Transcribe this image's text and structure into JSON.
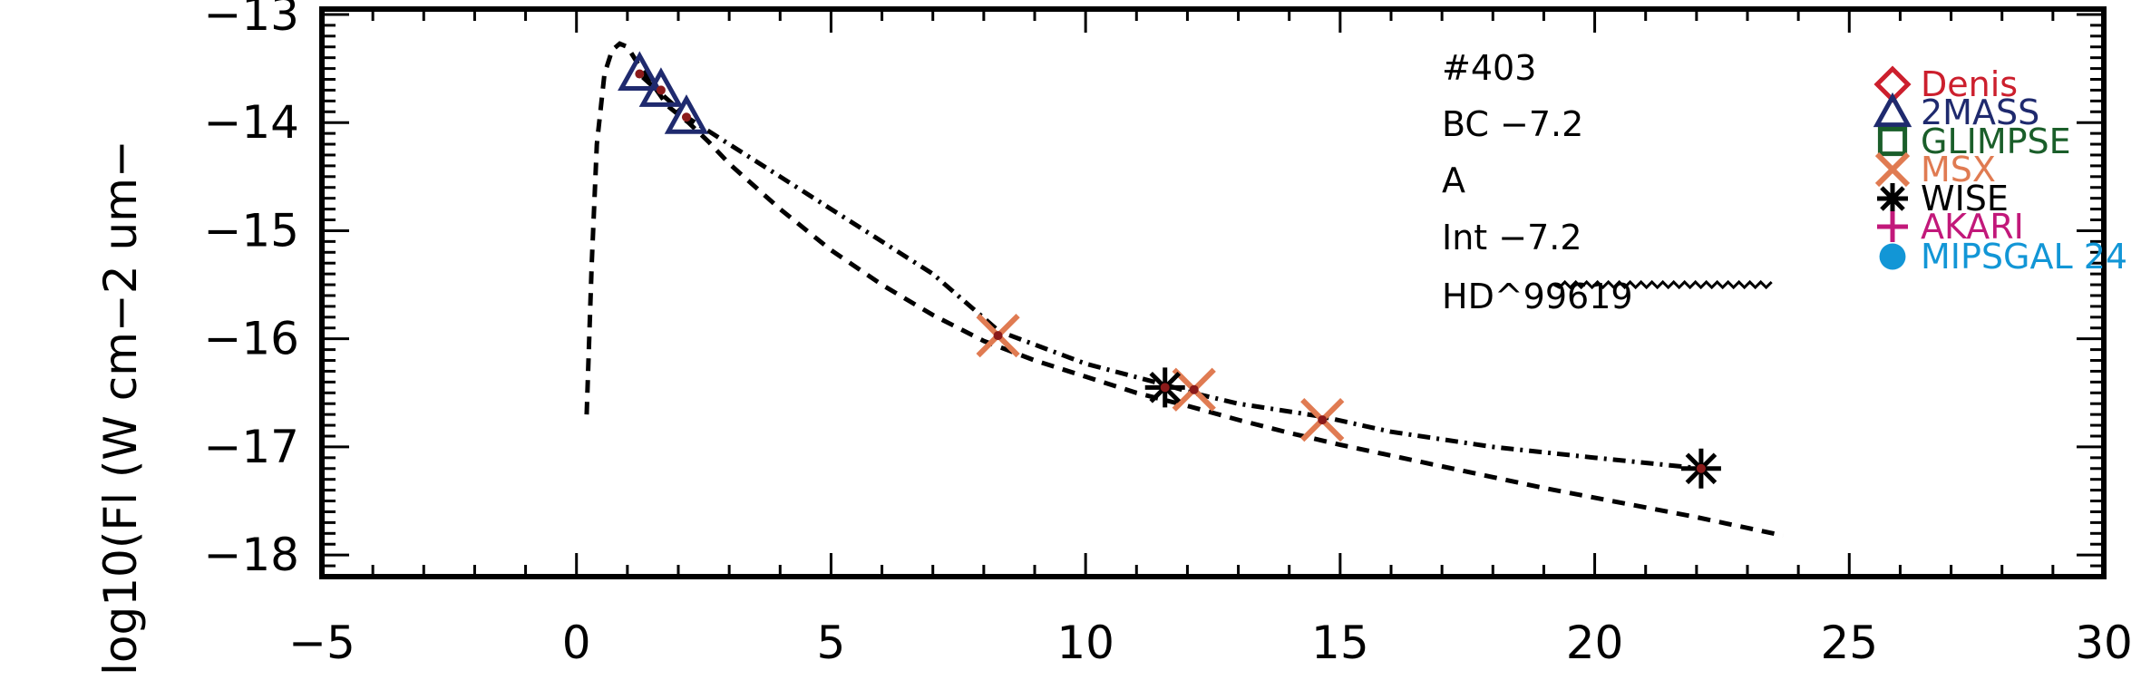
{
  "chart_data": {
    "type": "scatter",
    "xlim": [
      -5,
      30
    ],
    "ylim": [
      -18.2,
      -12.95
    ],
    "xticks": [
      -5,
      0,
      5,
      10,
      15,
      20,
      25,
      30
    ],
    "xtick_labels": [
      "−5",
      "0",
      "5",
      "10",
      "15",
      "20",
      "25",
      "30"
    ],
    "yticks": [
      -13,
      -14,
      -15,
      -16,
      -17,
      -18
    ],
    "ytick_labels": [
      "−13",
      "−14",
      "−15",
      "−16",
      "−17",
      "−18"
    ],
    "ylabel": "log10(Fl (W cm−2 um−",
    "xlabel": "",
    "grid": false,
    "annotations": [
      "#403",
      "BC −7.2",
      "A",
      "Int −7.2",
      "HD^99619"
    ],
    "legend": {
      "placement": "top-right",
      "entries": [
        {
          "label": "Denis",
          "marker": "diamond",
          "color": "#cc1f2d"
        },
        {
          "label": "2MASS",
          "marker": "triangle",
          "color": "#1f2a6e"
        },
        {
          "label": "GLIMPSE",
          "marker": "square",
          "color": "#1a5e2a"
        },
        {
          "label": "MSX",
          "marker": "x",
          "color": "#e07b52"
        },
        {
          "label": "WISE",
          "marker": "asterisk",
          "color": "#000000"
        },
        {
          "label": "AKARI",
          "marker": "plus",
          "color": "#c2187a"
        },
        {
          "label": "MIPSGAL 24",
          "marker": "circle",
          "color": "#1296d6"
        }
      ]
    },
    "series": [
      {
        "marker": "triangle",
        "color": "#1f2a6e",
        "x": [
          1.24,
          1.66,
          2.16
        ],
        "y": [
          -13.55,
          -13.7,
          -13.95
        ]
      },
      {
        "marker": "x",
        "color": "#e07b52",
        "x": [
          8.28,
          12.13,
          14.65
        ],
        "y": [
          -15.97,
          -16.47,
          -16.75
        ]
      },
      {
        "marker": "asterisk",
        "color": "#000000",
        "x": [
          11.56,
          22.09
        ],
        "y": [
          -16.45,
          -17.2
        ]
      }
    ],
    "lines": [
      {
        "style": "dashed",
        "x": [
          0.2,
          0.3,
          0.4,
          0.55,
          0.7,
          0.85,
          1.0,
          1.2,
          1.5,
          1.8,
          2.2,
          2.6,
          3.0,
          4.0,
          5.0,
          6.0,
          7.0,
          8.0,
          9.0,
          10.0,
          11.0,
          12.0,
          13.0,
          14.0,
          15.0,
          16.0,
          17.0,
          18.0,
          19.0,
          20.0,
          21.0,
          22.0,
          23.0,
          23.7
        ],
        "y": [
          -16.7,
          -15.3,
          -14.2,
          -13.55,
          -13.33,
          -13.27,
          -13.3,
          -13.45,
          -13.65,
          -13.85,
          -14.0,
          -14.18,
          -14.38,
          -14.8,
          -15.18,
          -15.5,
          -15.78,
          -16.02,
          -16.2,
          -16.35,
          -16.5,
          -16.62,
          -16.75,
          -16.87,
          -16.98,
          -17.08,
          -17.18,
          -17.28,
          -17.38,
          -17.47,
          -17.56,
          -17.65,
          -17.75,
          -17.82
        ]
      },
      {
        "style": "dashdot",
        "x": [
          1.3,
          2.2,
          3.0,
          4.0,
          5.0,
          6.0,
          7.0,
          8.3,
          10.0,
          11.6,
          12.1,
          13.0,
          14.65,
          16.0,
          18.0,
          20.0,
          22.1
        ],
        "y": [
          -13.58,
          -13.96,
          -14.2,
          -14.5,
          -14.8,
          -15.1,
          -15.4,
          -15.93,
          -16.23,
          -16.43,
          -16.5,
          -16.6,
          -16.72,
          -16.86,
          -17.0,
          -17.1,
          -17.2
        ]
      },
      {
        "style": "wavy",
        "x": [
          19.2,
          23.5
        ],
        "y": [
          -15.5,
          -15.5
        ]
      }
    ]
  }
}
